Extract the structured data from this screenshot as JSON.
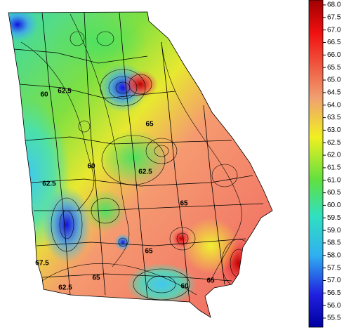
{
  "map": {
    "contour_labels": [
      "60",
      "62.5",
      "65",
      "62.5",
      "60",
      "62.5",
      "65",
      "65",
      "65",
      "62.5",
      "65",
      "60",
      "67.5"
    ]
  },
  "colorbar": {
    "range": [
      55.5,
      68
    ],
    "ticks": [
      {
        "value": 68,
        "label": "68.0"
      },
      67.5,
      {
        "value": 67,
        "label": "67.0"
      },
      66.5,
      {
        "value": 66,
        "label": "66.0"
      },
      65.5,
      {
        "value": 65,
        "label": "65.0"
      },
      64.5,
      {
        "value": 64,
        "label": "64.0"
      },
      63.5,
      {
        "value": 63,
        "label": "63.0"
      },
      62.5,
      {
        "value": 62,
        "label": "62.0"
      },
      61.5,
      {
        "value": 61,
        "label": "61.0"
      },
      60.5,
      {
        "value": 60,
        "label": "60.0"
      },
      59.5,
      {
        "value": 59,
        "label": "59.0"
      },
      58.5,
      {
        "value": 58,
        "label": "58.0"
      },
      57.5,
      {
        "value": 57,
        "label": "57.0"
      },
      56.5,
      {
        "value": 56,
        "label": "56.0"
      },
      55.5
    ]
  }
}
